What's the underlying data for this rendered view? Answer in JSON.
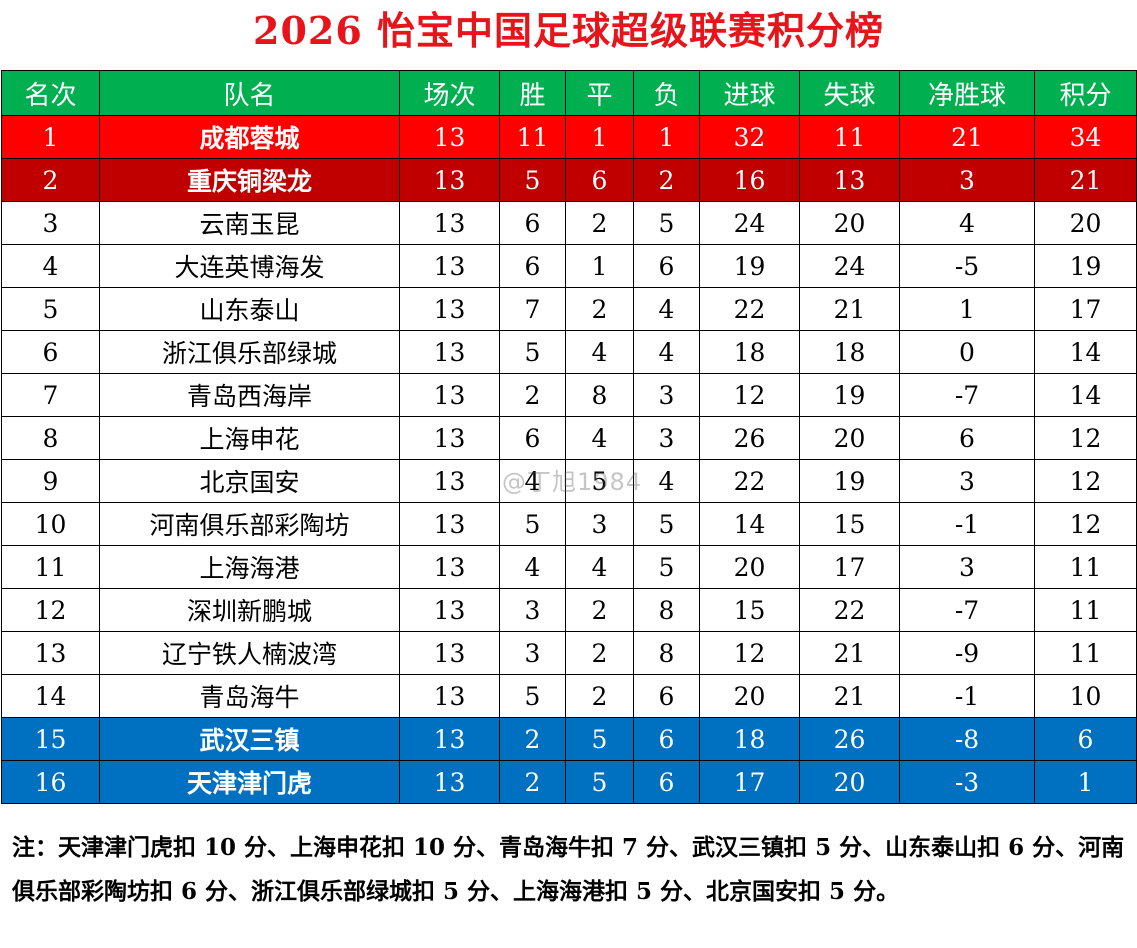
{
  "title": "2026 怡宝中国足球超级联赛积分榜",
  "table": {
    "headers": [
      "名次",
      "队名",
      "场次",
      "胜",
      "平",
      "负",
      "进球",
      "失球",
      "净胜球",
      "积分"
    ],
    "rows": [
      {
        "rank": "1",
        "team": "成都蓉城",
        "played": "13",
        "won": "11",
        "drawn": "1",
        "lost": "1",
        "gf": "32",
        "ga": "11",
        "gd": "21",
        "pts": "34"
      },
      {
        "rank": "2",
        "team": "重庆铜梁龙",
        "played": "13",
        "won": "5",
        "drawn": "6",
        "lost": "2",
        "gf": "16",
        "ga": "13",
        "gd": "3",
        "pts": "21"
      },
      {
        "rank": "3",
        "team": "云南玉昆",
        "played": "13",
        "won": "6",
        "drawn": "2",
        "lost": "5",
        "gf": "24",
        "ga": "20",
        "gd": "4",
        "pts": "20"
      },
      {
        "rank": "4",
        "team": "大连英博海发",
        "played": "13",
        "won": "6",
        "drawn": "1",
        "lost": "6",
        "gf": "19",
        "ga": "24",
        "gd": "-5",
        "pts": "19"
      },
      {
        "rank": "5",
        "team": "山东泰山",
        "played": "13",
        "won": "7",
        "drawn": "2",
        "lost": "4",
        "gf": "22",
        "ga": "21",
        "gd": "1",
        "pts": "17"
      },
      {
        "rank": "6",
        "team": "浙江俱乐部绿城",
        "played": "13",
        "won": "5",
        "drawn": "4",
        "lost": "4",
        "gf": "18",
        "ga": "18",
        "gd": "0",
        "pts": "14"
      },
      {
        "rank": "7",
        "team": "青岛西海岸",
        "played": "13",
        "won": "2",
        "drawn": "8",
        "lost": "3",
        "gf": "12",
        "ga": "19",
        "gd": "-7",
        "pts": "14"
      },
      {
        "rank": "8",
        "team": "上海申花",
        "played": "13",
        "won": "6",
        "drawn": "4",
        "lost": "3",
        "gf": "26",
        "ga": "20",
        "gd": "6",
        "pts": "12"
      },
      {
        "rank": "9",
        "team": "北京国安",
        "played": "13",
        "won": "4",
        "drawn": "5",
        "lost": "4",
        "gf": "22",
        "ga": "19",
        "gd": "3",
        "pts": "12"
      },
      {
        "rank": "10",
        "team": "河南俱乐部彩陶坊",
        "played": "13",
        "won": "5",
        "drawn": "3",
        "lost": "5",
        "gf": "14",
        "ga": "15",
        "gd": "-1",
        "pts": "12"
      },
      {
        "rank": "11",
        "team": "上海海港",
        "played": "13",
        "won": "4",
        "drawn": "4",
        "lost": "5",
        "gf": "20",
        "ga": "17",
        "gd": "3",
        "pts": "11"
      },
      {
        "rank": "12",
        "team": "深圳新鹏城",
        "played": "13",
        "won": "3",
        "drawn": "2",
        "lost": "8",
        "gf": "15",
        "ga": "22",
        "gd": "-7",
        "pts": "11"
      },
      {
        "rank": "13",
        "team": "辽宁铁人楠波湾",
        "played": "13",
        "won": "3",
        "drawn": "2",
        "lost": "8",
        "gf": "12",
        "ga": "21",
        "gd": "-9",
        "pts": "11"
      },
      {
        "rank": "14",
        "team": "青岛海牛",
        "played": "13",
        "won": "5",
        "drawn": "2",
        "lost": "6",
        "gf": "20",
        "ga": "21",
        "gd": "-1",
        "pts": "10"
      },
      {
        "rank": "15",
        "team": "武汉三镇",
        "played": "13",
        "won": "2",
        "drawn": "5",
        "lost": "6",
        "gf": "18",
        "ga": "26",
        "gd": "-8",
        "pts": "6"
      },
      {
        "rank": "16",
        "team": "天津津门虎",
        "played": "13",
        "won": "2",
        "drawn": "5",
        "lost": "6",
        "gf": "17",
        "ga": "20",
        "gd": "-3",
        "pts": "1"
      }
    ]
  },
  "note": "注：天津津门虎扣 10 分、上海申花扣 10 分、青岛海牛扣 7 分、武汉三镇扣 5 分、山东泰山扣 6 分、河南俱乐部彩陶坊扣 6 分、浙江俱乐部绿城扣 5 分、上海海港扣 5 分、北京国安扣 5 分。",
  "watermark": "@丁旭1984",
  "colors": {
    "title": "#e8141b",
    "header_bg": "#00b050",
    "champion_row": "#ff0000",
    "second_row": "#c00000",
    "relegation_rows": "#0070c0"
  }
}
